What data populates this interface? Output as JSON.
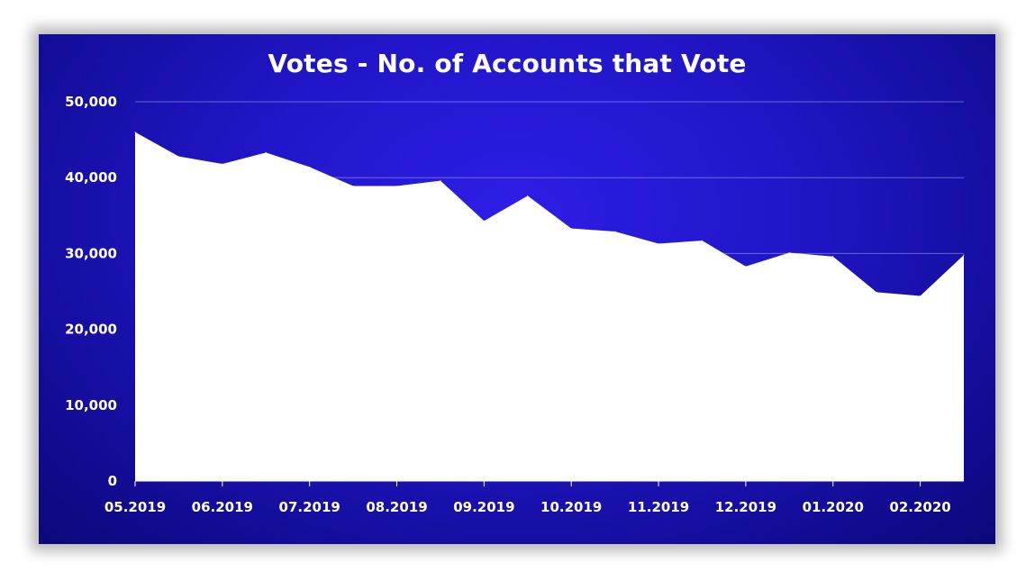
{
  "chart_data": {
    "type": "area",
    "title": "Votes - No. of Accounts that Vote",
    "xlabel": "",
    "ylabel": "",
    "ylim": [
      0,
      50000
    ],
    "yticks": [
      "0",
      "10,000",
      "20,000",
      "30,000",
      "40,000",
      "50,000"
    ],
    "xtick_labels": [
      "05.2019",
      "06.2019",
      "07.2019",
      "08.2019",
      "09.2019",
      "10.2019",
      "11.2019",
      "12.2019",
      "01.2020",
      "02.2020"
    ],
    "grid": "horizontal",
    "legend": "none",
    "fill_color": "#ffffff",
    "background_color": "#2116c8",
    "series": [
      {
        "values": [
          46000,
          42800,
          41800,
          43300,
          41400,
          38900,
          38900,
          39600,
          34300,
          37600,
          33300,
          32900,
          31300,
          31700,
          28300,
          30100,
          29600,
          24900,
          24400,
          29800
        ]
      }
    ]
  }
}
